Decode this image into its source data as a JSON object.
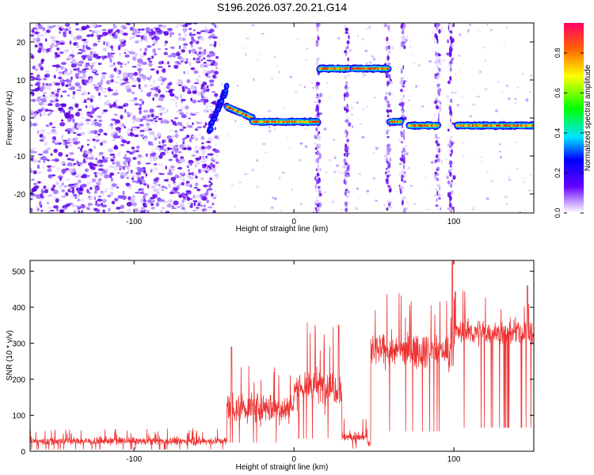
{
  "title": "S196.2026.037.20.21.G14",
  "chart_data": [
    {
      "type": "heatmap",
      "panel": "spectrogram",
      "xlabel": "Height of straight line (km)",
      "ylabel": "Frequency (Hz)",
      "xlim": [
        -165,
        150
      ],
      "ylim": [
        -25,
        25
      ],
      "xticks": [
        -100,
        0,
        100
      ],
      "yticks": [
        -20,
        -10,
        0,
        10,
        20
      ],
      "colorbar": {
        "label": "Normalized spectral amplitude",
        "range": [
          0,
          0.95
        ],
        "ticks": [
          0,
          0.2,
          0.4,
          0.6,
          0.8
        ],
        "tick_labels": [
          "0.0",
          "0.2",
          "0.4",
          "0.6",
          "0.8"
        ]
      },
      "features": [
        {
          "name": "noise-region",
          "x_range": [
            -165,
            -52
          ],
          "description_level": "low-amp scatter"
        },
        {
          "name": "rising-signal",
          "x_range": [
            -53,
            -42
          ],
          "freq_range": [
            -3,
            8
          ]
        },
        {
          "name": "decay-track",
          "x_range": [
            -42,
            -26
          ],
          "freq_start": 3,
          "freq_end": 0
        },
        {
          "name": "track-main",
          "x_range": [
            -26,
            15
          ],
          "freq": -1
        },
        {
          "name": "track-high-1",
          "x_range": [
            16,
            35
          ],
          "freq": 13
        },
        {
          "name": "track-high-2",
          "x_range": [
            37,
            59
          ],
          "freq": 13
        },
        {
          "name": "track-short",
          "x_range": [
            60,
            67
          ],
          "freq": -1
        },
        {
          "name": "track-mid",
          "x_range": [
            72,
            90
          ],
          "freq": -2
        },
        {
          "name": "track-right",
          "x_range": [
            102,
            150
          ],
          "freq": -2
        }
      ],
      "vertical_streaks_x": [
        15,
        33,
        59,
        68,
        90,
        98
      ]
    },
    {
      "type": "line",
      "panel": "snr",
      "xlabel": "Height of straight line (km)",
      "ylabel": "SNR (10 * v/v)",
      "xlim": [
        -165,
        150
      ],
      "ylim": [
        0,
        530
      ],
      "xticks": [
        -100,
        0,
        100
      ],
      "yticks": [
        0,
        100,
        200,
        300,
        400,
        500
      ],
      "color": "#ee3333",
      "segments": [
        {
          "x_range": [
            -165,
            -42
          ],
          "mean": 28,
          "spread": 18
        },
        {
          "x_range": [
            -42,
            0
          ],
          "mean": 120,
          "spread": 70
        },
        {
          "x_range": [
            0,
            30
          ],
          "mean": 180,
          "spread": 90
        },
        {
          "x_range": [
            30,
            46
          ],
          "mean": 40,
          "spread": 25
        },
        {
          "x_range": [
            48,
            100
          ],
          "mean": 280,
          "spread": 80
        },
        {
          "x_range": [
            100,
            150
          ],
          "mean": 330,
          "spread": 60
        }
      ],
      "peaks": [
        {
          "x": -39,
          "y": 290
        },
        {
          "x": 28,
          "y": 350
        },
        {
          "x": 99,
          "y": 530
        },
        {
          "x": 146,
          "y": 460
        }
      ]
    }
  ]
}
